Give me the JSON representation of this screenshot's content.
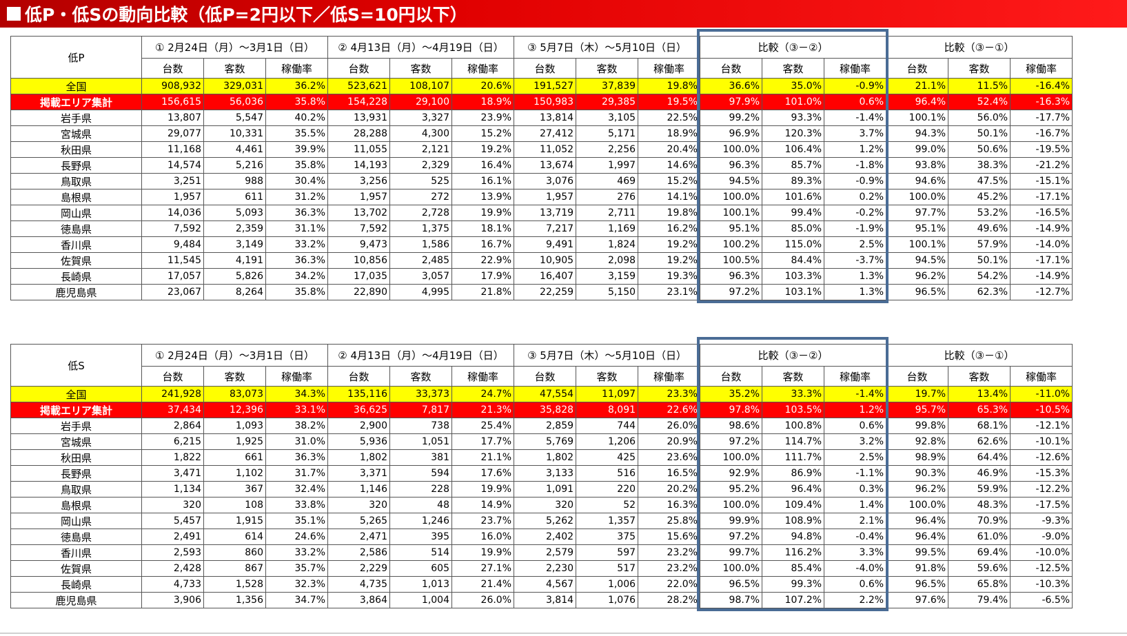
{
  "title": "低P・低Sの動向比較（低P=2円以下／低S=10円以下）",
  "column_headers": [
    "台数",
    "客数",
    "稼働率"
  ],
  "colors": {
    "title_bg": "#e00000",
    "national_row": "#ffff00",
    "aggregate_row": "#ff0000",
    "highlight_border": "#4a6c95"
  },
  "tables": [
    {
      "label": "低P",
      "periods": [
        "① 2月24日（月）～3月1日（日）",
        "② 4月13日（月）～4月19日（日）",
        "③ 5月7日（木）～5月10日（日）",
        "比較（③－②）",
        "比較（③－①）"
      ],
      "rows": [
        {
          "name": "全国",
          "values": [
            "908,932",
            "329,031",
            "36.2%",
            "523,621",
            "108,107",
            "20.6%",
            "191,527",
            "37,839",
            "19.8%",
            "36.6%",
            "35.0%",
            "-0.9%",
            "21.1%",
            "11.5%",
            "-16.4%"
          ]
        },
        {
          "name": "掲載エリア集計",
          "values": [
            "156,615",
            "56,036",
            "35.8%",
            "154,228",
            "29,100",
            "18.9%",
            "150,983",
            "29,385",
            "19.5%",
            "97.9%",
            "101.0%",
            "0.6%",
            "96.4%",
            "52.4%",
            "-16.3%"
          ]
        },
        {
          "name": "岩手県",
          "values": [
            "13,807",
            "5,547",
            "40.2%",
            "13,931",
            "3,327",
            "23.9%",
            "13,814",
            "3,105",
            "22.5%",
            "99.2%",
            "93.3%",
            "-1.4%",
            "100.1%",
            "56.0%",
            "-17.7%"
          ]
        },
        {
          "name": "宮城県",
          "values": [
            "29,077",
            "10,331",
            "35.5%",
            "28,288",
            "4,300",
            "15.2%",
            "27,412",
            "5,171",
            "18.9%",
            "96.9%",
            "120.3%",
            "3.7%",
            "94.3%",
            "50.1%",
            "-16.7%"
          ]
        },
        {
          "name": "秋田県",
          "values": [
            "11,168",
            "4,461",
            "39.9%",
            "11,055",
            "2,121",
            "19.2%",
            "11,052",
            "2,256",
            "20.4%",
            "100.0%",
            "106.4%",
            "1.2%",
            "99.0%",
            "50.6%",
            "-19.5%"
          ]
        },
        {
          "name": "長野県",
          "values": [
            "14,574",
            "5,216",
            "35.8%",
            "14,193",
            "2,329",
            "16.4%",
            "13,674",
            "1,997",
            "14.6%",
            "96.3%",
            "85.7%",
            "-1.8%",
            "93.8%",
            "38.3%",
            "-21.2%"
          ]
        },
        {
          "name": "鳥取県",
          "values": [
            "3,251",
            "988",
            "30.4%",
            "3,256",
            "525",
            "16.1%",
            "3,076",
            "469",
            "15.2%",
            "94.5%",
            "89.3%",
            "-0.9%",
            "94.6%",
            "47.5%",
            "-15.1%"
          ]
        },
        {
          "name": "島根県",
          "values": [
            "1,957",
            "611",
            "31.2%",
            "1,957",
            "272",
            "13.9%",
            "1,957",
            "276",
            "14.1%",
            "100.0%",
            "101.6%",
            "0.2%",
            "100.0%",
            "45.2%",
            "-17.1%"
          ]
        },
        {
          "name": "岡山県",
          "values": [
            "14,036",
            "5,093",
            "36.3%",
            "13,702",
            "2,728",
            "19.9%",
            "13,719",
            "2,711",
            "19.8%",
            "100.1%",
            "99.4%",
            "-0.2%",
            "97.7%",
            "53.2%",
            "-16.5%"
          ]
        },
        {
          "name": "徳島県",
          "values": [
            "7,592",
            "2,359",
            "31.1%",
            "7,592",
            "1,375",
            "18.1%",
            "7,217",
            "1,169",
            "16.2%",
            "95.1%",
            "85.0%",
            "-1.9%",
            "95.1%",
            "49.6%",
            "-14.9%"
          ]
        },
        {
          "name": "香川県",
          "values": [
            "9,484",
            "3,149",
            "33.2%",
            "9,473",
            "1,586",
            "16.7%",
            "9,491",
            "1,824",
            "19.2%",
            "100.2%",
            "115.0%",
            "2.5%",
            "100.1%",
            "57.9%",
            "-14.0%"
          ]
        },
        {
          "name": "佐賀県",
          "values": [
            "11,545",
            "4,191",
            "36.3%",
            "10,856",
            "2,485",
            "22.9%",
            "10,905",
            "2,098",
            "19.2%",
            "100.5%",
            "84.4%",
            "-3.7%",
            "94.5%",
            "50.1%",
            "-17.1%"
          ]
        },
        {
          "name": "長崎県",
          "values": [
            "17,057",
            "5,826",
            "34.2%",
            "17,035",
            "3,057",
            "17.9%",
            "16,407",
            "3,159",
            "19.3%",
            "96.3%",
            "103.3%",
            "1.3%",
            "96.2%",
            "54.2%",
            "-14.9%"
          ]
        },
        {
          "name": "鹿児島県",
          "values": [
            "23,067",
            "8,264",
            "35.8%",
            "22,890",
            "4,995",
            "21.8%",
            "22,259",
            "5,150",
            "23.1%",
            "97.2%",
            "103.1%",
            "1.3%",
            "96.5%",
            "62.3%",
            "-12.7%"
          ]
        }
      ]
    },
    {
      "label": "低S",
      "periods": [
        "① 2月24日（月）～3月1日（日）",
        "② 4月13日（月）～4月19日（日）",
        "③ 5月7日（木）～5月10日（日）",
        "比較（③－②）",
        "比較（③－①）"
      ],
      "rows": [
        {
          "name": "全国",
          "values": [
            "241,928",
            "83,073",
            "34.3%",
            "135,116",
            "33,373",
            "24.7%",
            "47,554",
            "11,097",
            "23.3%",
            "35.2%",
            "33.3%",
            "-1.4%",
            "19.7%",
            "13.4%",
            "-11.0%"
          ]
        },
        {
          "name": "掲載エリア集計",
          "values": [
            "37,434",
            "12,396",
            "33.1%",
            "36,625",
            "7,817",
            "21.3%",
            "35,828",
            "8,091",
            "22.6%",
            "97.8%",
            "103.5%",
            "1.2%",
            "95.7%",
            "65.3%",
            "-10.5%"
          ]
        },
        {
          "name": "岩手県",
          "values": [
            "2,864",
            "1,093",
            "38.2%",
            "2,900",
            "738",
            "25.4%",
            "2,859",
            "744",
            "26.0%",
            "98.6%",
            "100.8%",
            "0.6%",
            "99.8%",
            "68.1%",
            "-12.1%"
          ]
        },
        {
          "name": "宮城県",
          "values": [
            "6,215",
            "1,925",
            "31.0%",
            "5,936",
            "1,051",
            "17.7%",
            "5,769",
            "1,206",
            "20.9%",
            "97.2%",
            "114.7%",
            "3.2%",
            "92.8%",
            "62.6%",
            "-10.1%"
          ]
        },
        {
          "name": "秋田県",
          "values": [
            "1,822",
            "661",
            "36.3%",
            "1,802",
            "381",
            "21.1%",
            "1,802",
            "425",
            "23.6%",
            "100.0%",
            "111.7%",
            "2.5%",
            "98.9%",
            "64.4%",
            "-12.6%"
          ]
        },
        {
          "name": "長野県",
          "values": [
            "3,471",
            "1,102",
            "31.7%",
            "3,371",
            "594",
            "17.6%",
            "3,133",
            "516",
            "16.5%",
            "92.9%",
            "86.9%",
            "-1.1%",
            "90.3%",
            "46.9%",
            "-15.3%"
          ]
        },
        {
          "name": "鳥取県",
          "values": [
            "1,134",
            "367",
            "32.4%",
            "1,146",
            "228",
            "19.9%",
            "1,091",
            "220",
            "20.2%",
            "95.2%",
            "96.4%",
            "0.3%",
            "96.2%",
            "59.9%",
            "-12.2%"
          ]
        },
        {
          "name": "島根県",
          "values": [
            "320",
            "108",
            "33.8%",
            "320",
            "48",
            "14.9%",
            "320",
            "52",
            "16.3%",
            "100.0%",
            "109.4%",
            "1.4%",
            "100.0%",
            "48.3%",
            "-17.5%"
          ]
        },
        {
          "name": "岡山県",
          "values": [
            "5,457",
            "1,915",
            "35.1%",
            "5,265",
            "1,246",
            "23.7%",
            "5,262",
            "1,357",
            "25.8%",
            "99.9%",
            "108.9%",
            "2.1%",
            "96.4%",
            "70.9%",
            "-9.3%"
          ]
        },
        {
          "name": "徳島県",
          "values": [
            "2,491",
            "614",
            "24.6%",
            "2,471",
            "395",
            "16.0%",
            "2,402",
            "375",
            "15.6%",
            "97.2%",
            "94.8%",
            "-0.4%",
            "96.4%",
            "61.0%",
            "-9.0%"
          ]
        },
        {
          "name": "香川県",
          "values": [
            "2,593",
            "860",
            "33.2%",
            "2,586",
            "514",
            "19.9%",
            "2,579",
            "597",
            "23.2%",
            "99.7%",
            "116.2%",
            "3.3%",
            "99.5%",
            "69.4%",
            "-10.0%"
          ]
        },
        {
          "name": "佐賀県",
          "values": [
            "2,428",
            "867",
            "35.7%",
            "2,229",
            "605",
            "27.1%",
            "2,230",
            "517",
            "23.2%",
            "100.0%",
            "85.4%",
            "-4.0%",
            "91.8%",
            "59.6%",
            "-12.5%"
          ]
        },
        {
          "name": "長崎県",
          "values": [
            "4,733",
            "1,528",
            "32.3%",
            "4,735",
            "1,013",
            "21.4%",
            "4,567",
            "1,006",
            "22.0%",
            "96.5%",
            "99.3%",
            "0.6%",
            "96.5%",
            "65.8%",
            "-10.3%"
          ]
        },
        {
          "name": "鹿児島県",
          "values": [
            "3,906",
            "1,356",
            "34.7%",
            "3,864",
            "1,004",
            "26.0%",
            "3,814",
            "1,076",
            "28.2%",
            "98.7%",
            "107.2%",
            "2.2%",
            "97.6%",
            "79.4%",
            "-6.5%"
          ]
        }
      ]
    }
  ]
}
